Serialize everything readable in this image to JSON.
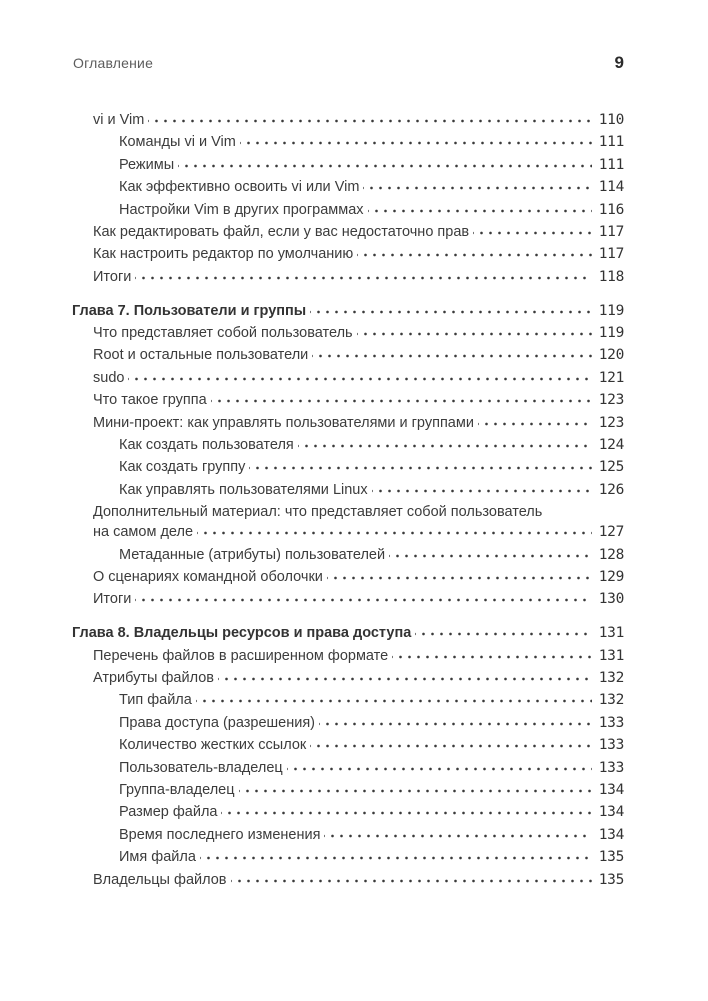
{
  "header": {
    "running_title": "Оглавление",
    "page_number": "9"
  },
  "colors": {
    "text": "#3c3c3c",
    "running_title": "#5c5c5c",
    "leader_dots": "#3a3a3a"
  },
  "toc": {
    "entries": [
      {
        "label": "vi и Vim",
        "page": "110",
        "level": 1
      },
      {
        "label": "Команды vi и Vim",
        "page": "111",
        "level": 2
      },
      {
        "label": "Режимы",
        "page": "111",
        "level": 2
      },
      {
        "label": "Как эффективно освоить vi или Vim",
        "page": "114",
        "level": 2
      },
      {
        "label": "Настройки Vim в других программах",
        "page": "116",
        "level": 2
      },
      {
        "label": "Как редактировать файл, если у вас недостаточно прав",
        "page": "117",
        "level": 1
      },
      {
        "label": "Как настроить редактор по умолчанию",
        "page": "117",
        "level": 1
      },
      {
        "label": "Итоги",
        "page": "118",
        "level": 1
      },
      {
        "label": "Глава 7. Пользователи и группы",
        "page": "119",
        "level": 0,
        "chapter": true
      },
      {
        "label": "Что представляет собой пользователь",
        "page": "119",
        "level": 1
      },
      {
        "label": "Root и остальные пользователи",
        "page": "120",
        "level": 1
      },
      {
        "label": "sudo",
        "page": "121",
        "level": 1
      },
      {
        "label": "Что такое группа",
        "page": "123",
        "level": 1
      },
      {
        "label": "Мини-проект: как управлять пользователями и группами",
        "page": "123",
        "level": 1
      },
      {
        "label": "Как создать пользователя",
        "page": "124",
        "level": 2
      },
      {
        "label": "Как создать группу",
        "page": "125",
        "level": 2
      },
      {
        "label": "Как управлять пользователями Linux",
        "page": "126",
        "level": 2
      },
      {
        "label": "Дополнительный материал: что представляет собой пользователь",
        "page": null,
        "level": 1,
        "tight": true
      },
      {
        "label": "на самом деле",
        "page": "127",
        "level": 1
      },
      {
        "label": "Метаданные (атрибуты) пользователей",
        "page": "128",
        "level": 2
      },
      {
        "label": "О сценариях командной оболочки",
        "page": "129",
        "level": 1
      },
      {
        "label": "Итоги",
        "page": "130",
        "level": 1
      },
      {
        "label": "Глава 8. Владельцы ресурсов и права доступа",
        "page": "131",
        "level": 0,
        "chapter": true
      },
      {
        "label": "Перечень файлов в расширенном формате",
        "page": "131",
        "level": 1
      },
      {
        "label": "Атрибуты файлов",
        "page": "132",
        "level": 1
      },
      {
        "label": "Тип файла",
        "page": "132",
        "level": 2
      },
      {
        "label": "Права доступа (разрешения)",
        "page": "133",
        "level": 2
      },
      {
        "label": "Количество жестких ссылок",
        "page": "133",
        "level": 2
      },
      {
        "label": "Пользователь-владелец",
        "page": "133",
        "level": 2
      },
      {
        "label": "Группа-владелец",
        "page": "134",
        "level": 2
      },
      {
        "label": "Размер файла",
        "page": "134",
        "level": 2
      },
      {
        "label": "Время последнего изменения",
        "page": "134",
        "level": 2
      },
      {
        "label": "Имя файла",
        "page": "135",
        "level": 2
      },
      {
        "label": "Владельцы файлов",
        "page": "135",
        "level": 1
      }
    ]
  }
}
